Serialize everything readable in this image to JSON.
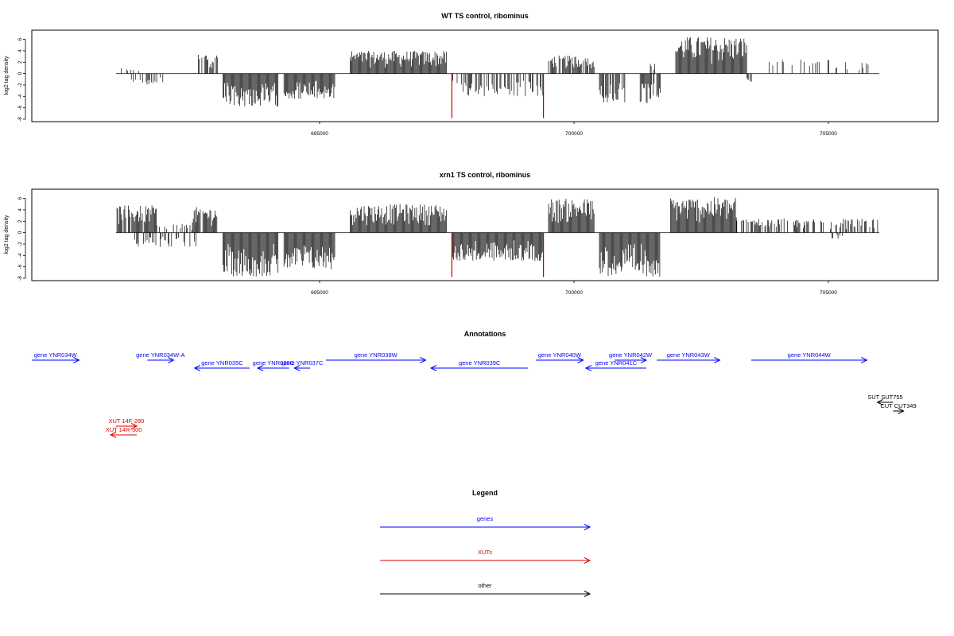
{
  "chart_data": [
    {
      "type": "bar",
      "title": "WT TS control, ribominus",
      "ylabel": "log2 tag density",
      "xlabel": "",
      "xlim": [
        690000,
        706500
      ],
      "ylim": [
        -8,
        7
      ],
      "yticks": [
        -8,
        -6,
        -4,
        -2,
        0,
        2,
        4,
        6
      ],
      "xticks": [
        695000,
        700000,
        705000
      ],
      "xtick_labels": [
        "695000",
        "700000",
        "705000"
      ],
      "series": [
        {
          "strand": "+",
          "color": "#000000",
          "segments": [
            {
              "x": [
                691000,
                691500
              ],
              "ymax": 1.0,
              "density": 0.3
            },
            {
              "x": [
                692600,
                693000
              ],
              "ymax": 3.8,
              "density": 0.7
            },
            {
              "x": [
                695600,
                697500
              ],
              "ymax": 4.0,
              "density": 1.0
            },
            {
              "x": [
                699500,
                700400
              ],
              "ymax": 3.2,
              "density": 0.8
            },
            {
              "x": [
                701500,
                701600
              ],
              "ymax": 1.8,
              "density": 0.5
            },
            {
              "x": [
                702000,
                703400
              ],
              "ymax": 6.5,
              "density": 1.0
            },
            {
              "x": [
                703700,
                705800
              ],
              "ymax": 2.5,
              "density": 0.25
            }
          ]
        },
        {
          "strand": "-",
          "color": "#000000",
          "segments": [
            {
              "x": [
                691300,
                692000
              ],
              "ymin": -2.0,
              "density": 0.3
            },
            {
              "x": [
                693100,
                694200
              ],
              "ymin": -5.8,
              "density": 1.0
            },
            {
              "x": [
                694300,
                695300
              ],
              "ymin": -4.5,
              "density": 1.0
            },
            {
              "x": [
                697600,
                699400
              ],
              "ymin": -4.0,
              "density": 0.5
            },
            {
              "x": [
                700500,
                701000
              ],
              "ymin": -5.3,
              "density": 0.8
            },
            {
              "x": [
                701300,
                701700
              ],
              "ymin": -5.5,
              "density": 0.8
            },
            {
              "x": [
                703400,
                703500
              ],
              "ymin": -1.5,
              "density": 0.5
            }
          ]
        }
      ],
      "highlights": [
        {
          "x": 697600,
          "ymin": -7.8,
          "color": "#cc0000"
        },
        {
          "x": 699400,
          "ymin": -7.8,
          "color": "#cc0000"
        }
      ]
    },
    {
      "type": "bar",
      "title": "xrn1 TS control, ribominus",
      "ylabel": "log2 tag density",
      "xlabel": "",
      "xlim": [
        690000,
        706500
      ],
      "ylim": [
        -8,
        7
      ],
      "yticks": [
        -8,
        -6,
        -4,
        -2,
        0,
        2,
        4,
        6
      ],
      "xticks": [
        695000,
        700000,
        705000
      ],
      "xtick_labels": [
        "695000",
        "700000",
        "705000"
      ],
      "series": [
        {
          "strand": "+",
          "color": "#000000",
          "segments": [
            {
              "x": [
                691000,
                691800
              ],
              "ymax": 4.8,
              "density": 0.9
            },
            {
              "x": [
                691800,
                692500
              ],
              "ymax": 1.5,
              "density": 0.4
            },
            {
              "x": [
                692500,
                693000
              ],
              "ymax": 4.5,
              "density": 0.9
            },
            {
              "x": [
                695600,
                697500
              ],
              "ymax": 5.0,
              "density": 1.0
            },
            {
              "x": [
                699500,
                700400
              ],
              "ymax": 6.0,
              "density": 1.0
            },
            {
              "x": [
                701900,
                703200
              ],
              "ymax": 6.2,
              "density": 1.0
            },
            {
              "x": [
                703200,
                706000
              ],
              "ymax": 2.5,
              "density": 0.5
            }
          ]
        },
        {
          "strand": "-",
          "color": "#000000",
          "segments": [
            {
              "x": [
                691300,
                692600
              ],
              "ymin": -2.5,
              "density": 0.4
            },
            {
              "x": [
                693100,
                694200
              ],
              "ymin": -7.7,
              "density": 1.0
            },
            {
              "x": [
                694300,
                695300
              ],
              "ymin": -6.5,
              "density": 1.0
            },
            {
              "x": [
                697600,
                699400
              ],
              "ymin": -5.0,
              "density": 1.0
            },
            {
              "x": [
                700500,
                701700
              ],
              "ymin": -7.7,
              "density": 1.0
            },
            {
              "x": [
                705000,
                705300
              ],
              "ymin": -1.2,
              "density": 0.5
            }
          ]
        }
      ],
      "highlights": [
        {
          "x": 697600,
          "ymin": -7.8,
          "color": "#cc0000"
        },
        {
          "x": 699400,
          "ymin": -7.8,
          "color": "#cc0000"
        }
      ]
    }
  ],
  "annotations": {
    "title": "Annotations",
    "colors": {
      "gene": "#0000ff",
      "xut": "#dd0000",
      "other": "#000000"
    },
    "features": [
      {
        "label": "gene YNR034W",
        "kind": "gene",
        "start": 690000,
        "end": 690900,
        "dir": "right",
        "row": 0
      },
      {
        "label": "gene YNR034W-A",
        "kind": "gene",
        "start": 692200,
        "end": 692700,
        "dir": "right",
        "row": 0
      },
      {
        "label": "gene YNR035C",
        "kind": "gene",
        "start": 693100,
        "end": 694150,
        "dir": "left",
        "row": 1
      },
      {
        "label": "gene YNR036C",
        "kind": "gene",
        "start": 694300,
        "end": 694900,
        "dir": "left",
        "row": 1
      },
      {
        "label": "gene YNR037C",
        "kind": "gene",
        "start": 695000,
        "end": 695300,
        "dir": "left",
        "row": 1
      },
      {
        "label": "gene YNR038W",
        "kind": "gene",
        "start": 695600,
        "end": 697500,
        "dir": "right",
        "row": 0
      },
      {
        "label": "gene YNR039C",
        "kind": "gene",
        "start": 697600,
        "end": 699450,
        "dir": "left",
        "row": 1
      },
      {
        "label": "gene YNR040W",
        "kind": "gene",
        "start": 699600,
        "end": 700500,
        "dir": "right",
        "row": 0
      },
      {
        "label": "gene YNR041C",
        "kind": "gene",
        "start": 700550,
        "end": 701700,
        "dir": "left",
        "row": 1
      },
      {
        "label": "gene YNR042W",
        "kind": "gene",
        "start": 701100,
        "end": 701700,
        "dir": "right",
        "row": 0
      },
      {
        "label": "gene YNR043W",
        "kind": "gene",
        "start": 701900,
        "end": 703100,
        "dir": "right",
        "row": 0
      },
      {
        "label": "gene YNR044W",
        "kind": "gene",
        "start": 703700,
        "end": 705900,
        "dir": "right",
        "row": 0
      },
      {
        "label": "SUT SUT755",
        "kind": "other",
        "start": 706100,
        "end": 706400,
        "dir": "left",
        "row": 2
      },
      {
        "label": "CUT CUT349",
        "kind": "other",
        "start": 706400,
        "end": 706600,
        "dir": "right",
        "row": 3
      },
      {
        "label": "XUT 14F-280",
        "kind": "xut",
        "start": 691600,
        "end": 692000,
        "dir": "right",
        "row": 4
      },
      {
        "label": "XUT 14R-300",
        "kind": "xut",
        "start": 691500,
        "end": 692000,
        "dir": "left",
        "row": 5
      }
    ]
  },
  "legend": {
    "title": "Legend",
    "items": [
      {
        "label": "genes",
        "color": "#0000ff"
      },
      {
        "label": "XUTs",
        "color": "#dd0000"
      },
      {
        "label": "other",
        "color": "#000000"
      }
    ]
  }
}
